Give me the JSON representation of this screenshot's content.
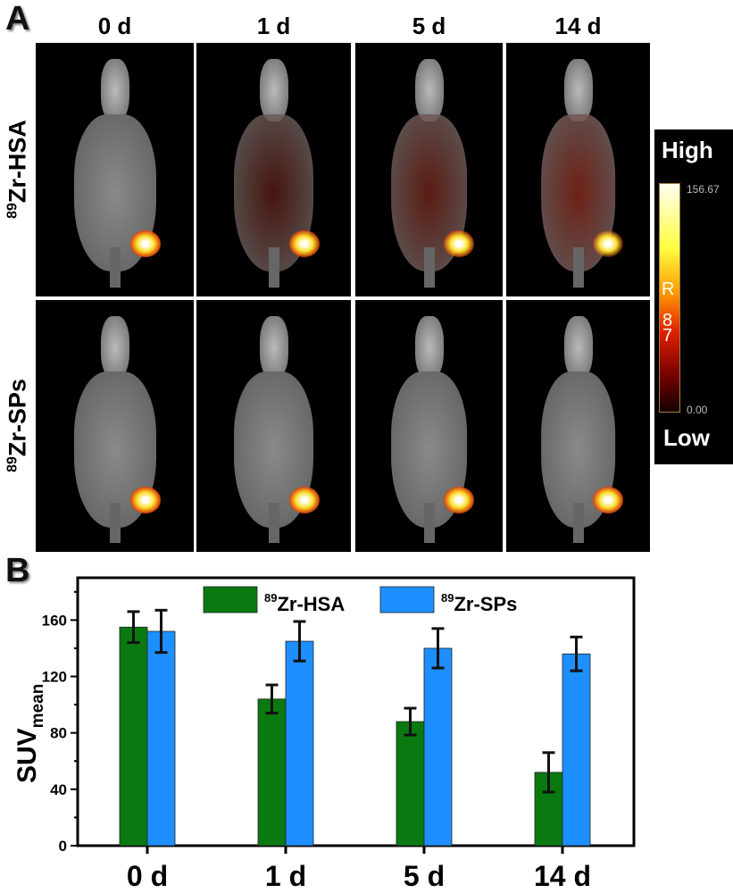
{
  "panel_a": {
    "label": "A",
    "columns": [
      "0 d",
      "1 d",
      "5 d",
      "14 d"
    ],
    "rows": [
      {
        "sup": "89",
        "name": "Zr-HSA",
        "uptake": [
          0.9,
          0.75,
          0.6,
          0.3
        ]
      },
      {
        "sup": "89",
        "name": "Zr-SPs",
        "uptake": [
          0.9,
          0.85,
          0.85,
          0.85
        ]
      }
    ],
    "colorbar": {
      "high": "High",
      "low": "Low",
      "max": "156.67",
      "min": "0.00",
      "unit_glyphs": [
        "R",
        "8",
        "7"
      ]
    }
  },
  "chart_data": {
    "type": "bar",
    "panel_label": "B",
    "categories": [
      "0 d",
      "1 d",
      "5 d",
      "14 d"
    ],
    "series": [
      {
        "name_sup": "89",
        "name": "Zr-HSA",
        "color": "#0a7a10",
        "values": [
          155,
          104,
          88,
          52
        ],
        "errors": [
          11,
          10,
          9.5,
          14
        ]
      },
      {
        "name_sup": "89",
        "name": "Zr-SPs",
        "color": "#1e8fff",
        "values": [
          152,
          145,
          140,
          136
        ],
        "errors": [
          15,
          14,
          14,
          12
        ]
      }
    ],
    "ylabel": "SUV",
    "ylabel_sub": "mean",
    "ylim": [
      0,
      190
    ],
    "yticks": [
      "0",
      "40",
      "80",
      "120",
      "160"
    ],
    "legend": "top-center"
  }
}
